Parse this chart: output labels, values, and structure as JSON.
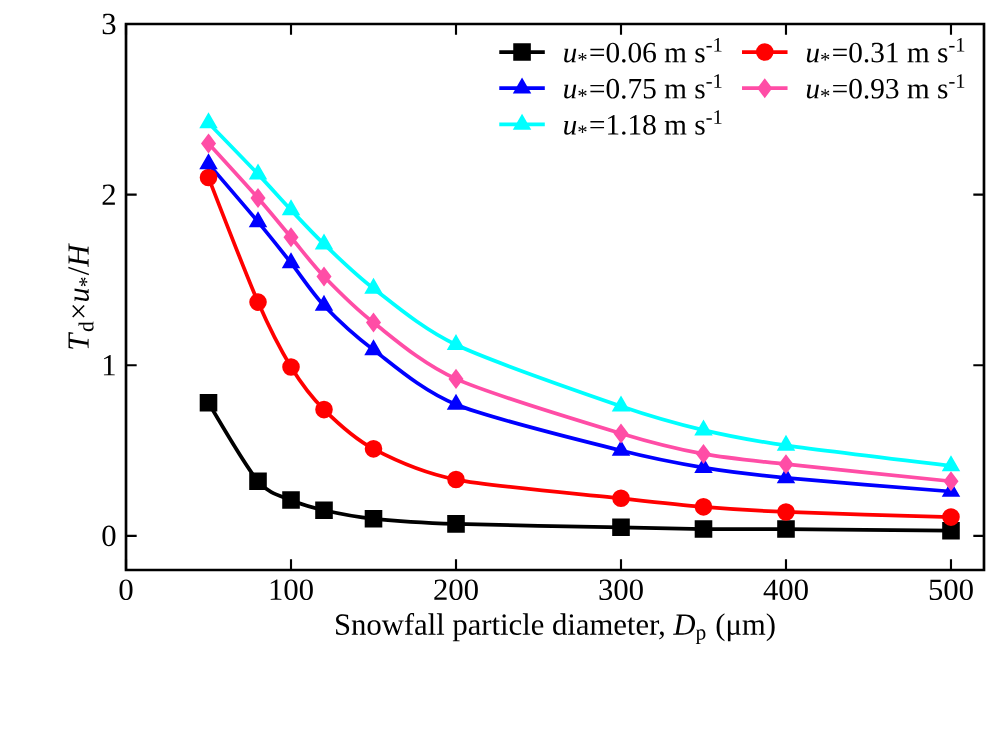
{
  "chart_data": {
    "type": "line",
    "xlabel": "Snowfall particle diameter, *D*$_{p}$ (μm)",
    "ylabel": "*T*$_{d}$×*u*$_{*}$/*H*",
    "x": [
      50,
      80,
      100,
      120,
      150,
      200,
      300,
      350,
      400,
      500
    ],
    "series": [
      {
        "name": "*u*$_{*}$=0.06 m s$^{-1}$",
        "color": "#000000",
        "marker": "square",
        "values": [
          0.78,
          0.32,
          0.21,
          0.15,
          0.1,
          0.07,
          0.05,
          0.04,
          0.04,
          0.03
        ]
      },
      {
        "name": "*u*$_{*}$=0.31 m s$^{-1}$",
        "color": "#ff0000",
        "marker": "circle",
        "values": [
          2.1,
          1.37,
          0.99,
          0.74,
          0.51,
          0.33,
          0.22,
          0.17,
          0.14,
          0.11
        ]
      },
      {
        "name": "*u*$_{*}$=0.75 m s$^{-1}$",
        "color": "#0000ff",
        "marker": "triangle",
        "values": [
          2.18,
          1.84,
          1.6,
          1.35,
          1.09,
          0.77,
          0.5,
          0.4,
          0.34,
          0.26
        ]
      },
      {
        "name": "*u*$_{*}$=0.93 m s$^{-1}$",
        "color": "#ff4da6",
        "marker": "diamond",
        "values": [
          2.3,
          1.98,
          1.75,
          1.52,
          1.25,
          0.92,
          0.6,
          0.48,
          0.42,
          0.32
        ]
      },
      {
        "name": "*u*$_{*}$=1.18 m s$^{-1}$",
        "color": "#00ffff",
        "marker": "triangle",
        "values": [
          2.42,
          2.12,
          1.91,
          1.71,
          1.45,
          1.12,
          0.76,
          0.62,
          0.53,
          0.41
        ]
      }
    ],
    "xlim": [
      0,
      520
    ],
    "ylim": [
      -0.2,
      3
    ],
    "xticks": [
      0,
      100,
      200,
      300,
      400,
      500
    ],
    "yticks": [
      0,
      1,
      2,
      3
    ],
    "legend": "top right",
    "grid": false,
    "line_style": "solid"
  }
}
